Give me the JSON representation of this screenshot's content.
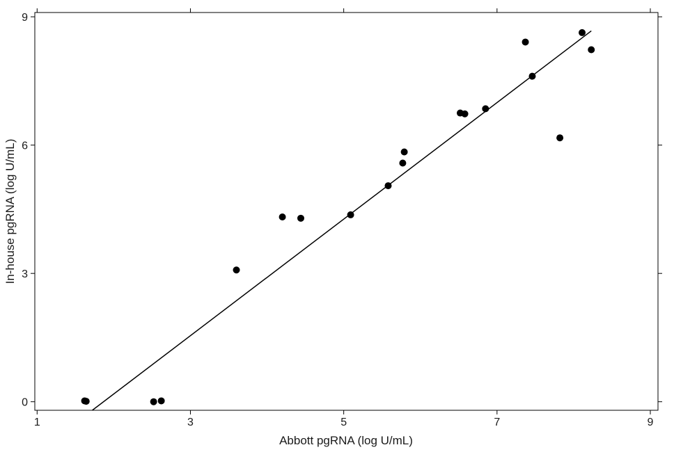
{
  "chart_data": {
    "type": "scatter",
    "title": "",
    "xlabel": "Abbott pgRNA (log U/mL)",
    "ylabel": "In-house pgRNA (log U/mL)",
    "xlim": [
      0.97,
      9.1
    ],
    "ylim": [
      -0.2,
      9.1
    ],
    "xticks": [
      1,
      3,
      5,
      7,
      9
    ],
    "yticks": [
      0,
      3,
      6,
      9
    ],
    "grid": false,
    "legend": "none",
    "point_color": "#000000",
    "line_color": "#000000",
    "points": [
      {
        "x": 1.62,
        "y": 0.02
      },
      {
        "x": 1.64,
        "y": 0.01
      },
      {
        "x": 2.52,
        "y": 0.0
      },
      {
        "x": 2.62,
        "y": 0.02
      },
      {
        "x": 3.6,
        "y": 3.08
      },
      {
        "x": 4.2,
        "y": 4.32
      },
      {
        "x": 4.44,
        "y": 4.29
      },
      {
        "x": 5.09,
        "y": 4.37
      },
      {
        "x": 5.58,
        "y": 5.05
      },
      {
        "x": 5.77,
        "y": 5.58
      },
      {
        "x": 5.79,
        "y": 5.84
      },
      {
        "x": 6.52,
        "y": 6.75
      },
      {
        "x": 6.58,
        "y": 6.73
      },
      {
        "x": 6.85,
        "y": 6.85
      },
      {
        "x": 7.37,
        "y": 8.41
      },
      {
        "x": 7.46,
        "y": 7.61
      },
      {
        "x": 7.82,
        "y": 6.17
      },
      {
        "x": 8.11,
        "y": 8.63
      },
      {
        "x": 8.23,
        "y": 8.23
      }
    ],
    "fit_line": {
      "x": [
        1.72,
        8.23
      ],
      "y": [
        -0.2,
        8.67
      ]
    }
  }
}
